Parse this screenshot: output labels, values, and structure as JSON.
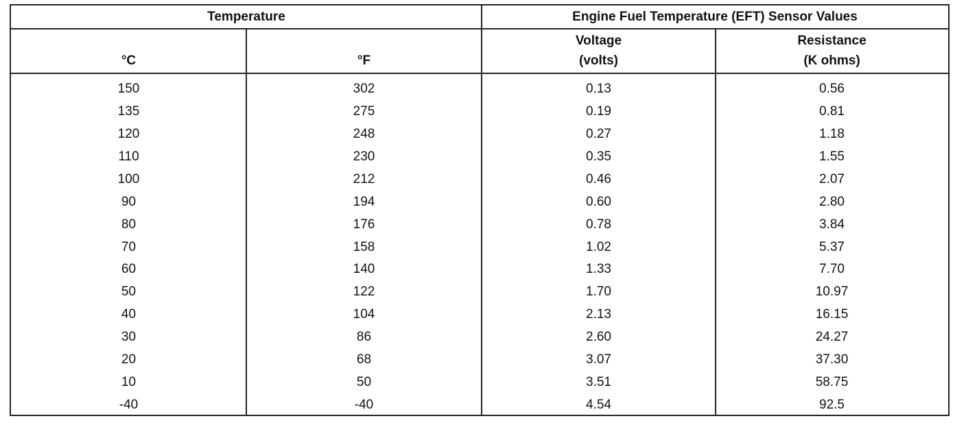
{
  "table": {
    "group_headers": [
      "Temperature",
      "Engine Fuel Temperature (EFT) Sensor Values"
    ],
    "column_headers": [
      [
        "°C"
      ],
      [
        "°F"
      ],
      [
        "Voltage",
        "(volts)"
      ],
      [
        "Resistance",
        "(K ohms)"
      ]
    ],
    "rows": [
      [
        "150",
        "302",
        "0.13",
        "0.56"
      ],
      [
        "135",
        "275",
        "0.19",
        "0.81"
      ],
      [
        "120",
        "248",
        "0.27",
        "1.18"
      ],
      [
        "110",
        "230",
        "0.35",
        "1.55"
      ],
      [
        "100",
        "212",
        "0.46",
        "2.07"
      ],
      [
        "90",
        "194",
        "0.60",
        "2.80"
      ],
      [
        "80",
        "176",
        "0.78",
        "3.84"
      ],
      [
        "70",
        "158",
        "1.02",
        "5.37"
      ],
      [
        "60",
        "140",
        "1.33",
        "7.70"
      ],
      [
        "50",
        "122",
        "1.70",
        "10.97"
      ],
      [
        "40",
        "104",
        "2.13",
        "16.15"
      ],
      [
        "30",
        "86",
        "2.60",
        "24.27"
      ],
      [
        "20",
        "68",
        "3.07",
        "37.30"
      ],
      [
        "10",
        "50",
        "3.51",
        "58.75"
      ],
      [
        "-40",
        "-40",
        "4.54",
        "92.5"
      ]
    ]
  }
}
